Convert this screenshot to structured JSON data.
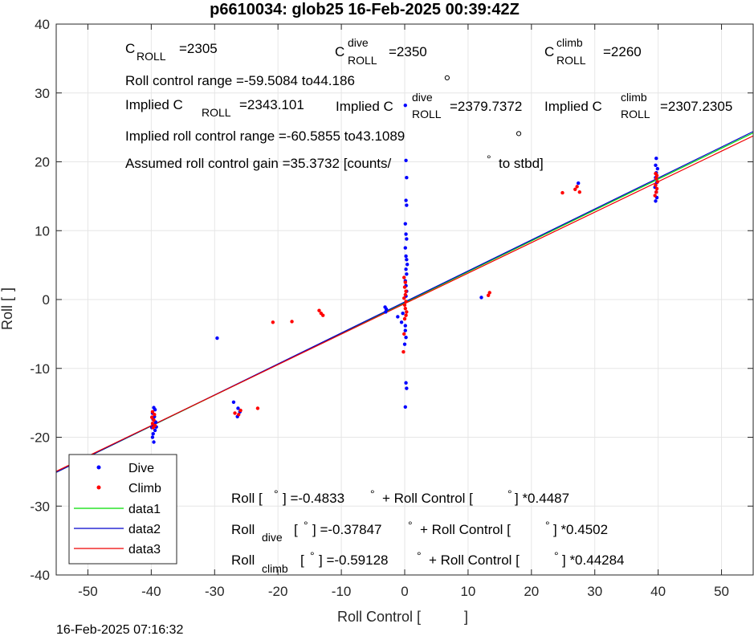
{
  "title": "p6610034: glob25 16-Feb-2025 00:39:42Z",
  "timestamp": "16-Feb-2025 07:16:32",
  "colors": {
    "dive": "#0000ff",
    "climb": "#ff0000",
    "data1": "#00dd00",
    "data2": "#0000cc",
    "data3": "#ee0000",
    "grid": "#e6e6e6",
    "axis": "#262626"
  },
  "annotations": {
    "c_roll": {
      "base": "C",
      "sub": "ROLL",
      "value": "=2305"
    },
    "c_roll_dive": {
      "base": "C",
      "sup": "dive",
      "sub": "ROLL",
      "value": "=2350"
    },
    "c_roll_climb": {
      "base": "C",
      "sup": "climb",
      "sub": "ROLL",
      "value": "=2260"
    },
    "roll_range": "Roll control range =-59.5084 to44.186",
    "implied_c": {
      "prefix": "Implied C",
      "sub": "ROLL",
      "value": "=2343.101"
    },
    "implied_c_dive": {
      "prefix": "Implied C",
      "sup": "dive",
      "sub": "ROLL",
      "value": "=2379.7372"
    },
    "implied_c_climb": {
      "prefix": "Implied C",
      "sup": "climb",
      "sub": "ROLL",
      "value": "=2307.2305"
    },
    "implied_range": "Implied roll control range =-60.5855 to43.1089",
    "gain": "Assumed roll control gain =35.3732 [counts/",
    "gain_suffix": "to stbd]",
    "fit_all": {
      "a": "Roll [",
      "b": "] =-0.4833",
      "c": "+ Roll Control [",
      "d": "] *0.4487"
    },
    "fit_dive": {
      "a": "Roll",
      "sub": "dive",
      "b": "[",
      "c": "] =-0.37847",
      "d": "+ Roll Control [",
      "e": "] *0.4502"
    },
    "fit_climb": {
      "a": "Roll",
      "sub": "climb",
      "b": "[",
      "c": "] =-0.59128",
      "d": "+ Roll Control [",
      "e": "] *0.44284"
    }
  },
  "chart_data": {
    "type": "scatter",
    "title": "p6610034: glob25 16-Feb-2025 00:39:42Z",
    "xlabel": "Roll Control [",
    "xlabel_suffix": "]",
    "ylabel": "Roll [",
    "ylabel_suffix": "]",
    "xlim": [
      -55,
      55
    ],
    "ylim": [
      -40,
      40
    ],
    "xticks": [
      -50,
      -40,
      -30,
      -20,
      -10,
      0,
      10,
      20,
      30,
      40,
      50
    ],
    "yticks": [
      -40,
      -30,
      -20,
      -10,
      0,
      10,
      20,
      30,
      40
    ],
    "grid": true,
    "legend_position": "bottom-left",
    "series": [
      {
        "name": "Dive",
        "kind": "points",
        "color": "#0000ff",
        "points": [
          [
            -39.6,
            -15.7
          ],
          [
            -39.4,
            -16.0
          ],
          [
            -39.8,
            -16.5
          ],
          [
            -39.5,
            -17.0
          ],
          [
            -39.7,
            -17.4
          ],
          [
            -39.3,
            -17.8
          ],
          [
            -39.6,
            -18.2
          ],
          [
            -39.9,
            -18.6
          ],
          [
            -39.4,
            -19.0
          ],
          [
            -39.7,
            -19.5
          ],
          [
            -39.8,
            -20.0
          ],
          [
            -39.6,
            -20.7
          ],
          [
            -39.2,
            -18.5
          ],
          [
            -29.6,
            -5.6
          ],
          [
            -27.0,
            -14.9
          ],
          [
            -26.3,
            -15.8
          ],
          [
            -26.0,
            -16.3
          ],
          [
            -26.4,
            -17.0
          ],
          [
            -3.1,
            -1.1
          ],
          [
            -2.9,
            -1.4
          ],
          [
            -3.0,
            -1.8
          ],
          [
            -1.1,
            -2.5
          ],
          [
            -0.5,
            -3.3
          ],
          [
            -0.3,
            -2.0
          ],
          [
            0.1,
            -3.8
          ],
          [
            0.2,
            -5.5
          ],
          [
            0.0,
            -6.5
          ],
          [
            0.2,
            -12.1
          ],
          [
            0.3,
            -12.9
          ],
          [
            0.1,
            -15.6
          ],
          [
            0.1,
            -4.5
          ],
          [
            0.2,
            0.5
          ],
          [
            0.3,
            1.2
          ],
          [
            0.2,
            2.0
          ],
          [
            0.1,
            2.7
          ],
          [
            0.3,
            3.7
          ],
          [
            0.2,
            4.4
          ],
          [
            0.4,
            5.1
          ],
          [
            0.3,
            5.8
          ],
          [
            0.2,
            6.3
          ],
          [
            0.1,
            7.5
          ],
          [
            0.3,
            8.8
          ],
          [
            0.2,
            9.5
          ],
          [
            0.1,
            11.0
          ],
          [
            0.3,
            13.7
          ],
          [
            0.2,
            14.4
          ],
          [
            0.3,
            17.7
          ],
          [
            0.2,
            20.2
          ],
          [
            0.1,
            28.2
          ],
          [
            12.1,
            0.3
          ],
          [
            27.4,
            16.9
          ],
          [
            39.6,
            14.3
          ],
          [
            39.8,
            14.8
          ],
          [
            39.7,
            15.6
          ],
          [
            39.5,
            16.3
          ],
          [
            39.8,
            17.0
          ],
          [
            39.6,
            17.7
          ],
          [
            39.7,
            18.4
          ],
          [
            39.9,
            19.0
          ],
          [
            39.6,
            19.5
          ],
          [
            39.7,
            20.5
          ]
        ]
      },
      {
        "name": "Climb",
        "kind": "points",
        "color": "#ff0000",
        "points": [
          [
            -39.8,
            -16.3
          ],
          [
            -39.5,
            -16.7
          ],
          [
            -39.9,
            -17.1
          ],
          [
            -39.6,
            -17.5
          ],
          [
            -39.8,
            -18.0
          ],
          [
            -39.4,
            -18.3
          ],
          [
            -39.7,
            -18.6
          ],
          [
            -26.8,
            -16.5
          ],
          [
            -26.2,
            -16.7
          ],
          [
            -25.9,
            -16.1
          ],
          [
            -23.2,
            -15.8
          ],
          [
            -20.8,
            -3.3
          ],
          [
            -17.8,
            -3.2
          ],
          [
            -13.5,
            -1.6
          ],
          [
            -13.2,
            -2.0
          ],
          [
            -12.9,
            -2.3
          ],
          [
            -0.2,
            -7.6
          ],
          [
            -0.1,
            -5.0
          ],
          [
            0.0,
            -2.8
          ],
          [
            0.2,
            -2.3
          ],
          [
            0.3,
            -1.8
          ],
          [
            0.1,
            -1.3
          ],
          [
            0.0,
            -0.8
          ],
          [
            0.2,
            -0.3
          ],
          [
            -0.1,
            0.2
          ],
          [
            0.1,
            0.7
          ],
          [
            0.2,
            1.2
          ],
          [
            0.0,
            1.8
          ],
          [
            0.1,
            2.5
          ],
          [
            -0.1,
            3.2
          ],
          [
            13.2,
            0.6
          ],
          [
            13.4,
            1.0
          ],
          [
            24.9,
            15.5
          ],
          [
            26.9,
            16.0
          ],
          [
            27.2,
            16.4
          ],
          [
            27.6,
            15.6
          ],
          [
            39.5,
            15.1
          ],
          [
            39.7,
            15.6
          ],
          [
            39.8,
            16.1
          ],
          [
            39.6,
            16.6
          ],
          [
            39.9,
            17.1
          ],
          [
            39.7,
            17.6
          ],
          [
            39.8,
            18.0
          ],
          [
            39.6,
            18.3
          ]
        ]
      },
      {
        "name": "data1",
        "kind": "line",
        "color": "#00dd00",
        "x": [
          -55,
          55
        ],
        "y": [
          -25.1,
          24.2
        ]
      },
      {
        "name": "data2",
        "kind": "line",
        "color": "#0000cc",
        "x": [
          -55,
          55
        ],
        "y": [
          -25.1,
          24.4
        ]
      },
      {
        "name": "data3",
        "kind": "line",
        "color": "#ee0000",
        "x": [
          -55,
          55
        ],
        "y": [
          -24.95,
          23.76
        ]
      }
    ],
    "open_markers": [
      [
        6.7,
        32.2
      ],
      [
        18.0,
        24.1
      ]
    ]
  }
}
